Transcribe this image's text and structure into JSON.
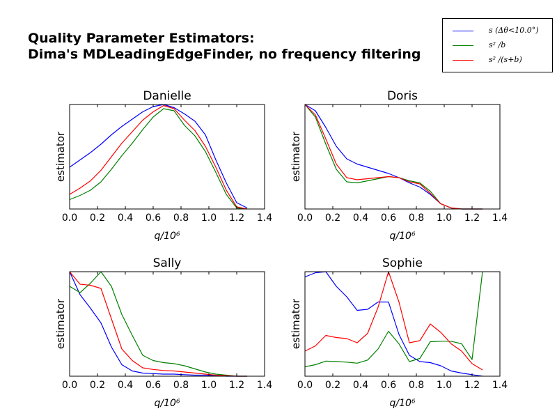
{
  "suptitle": {
    "line1": "Quality Parameter Estimators:",
    "line2": "Dima's MDLeadingEdgeFinder, no frequency filtering"
  },
  "legend": {
    "placement": "top-right",
    "entries": [
      {
        "label": "s (Δθ<10.0°)",
        "color": "#0000ff"
      },
      {
        "label": "s² /b",
        "color": "#008000"
      },
      {
        "label": "s² /(s+b)",
        "color": "#ff0000"
      }
    ]
  },
  "chart_data": [
    {
      "type": "line",
      "title": "Danielle",
      "xlabel": "q/10⁶",
      "ylabel": "estimator",
      "xlim": [
        0.0,
        1.4
      ],
      "ylim": [
        0.0,
        1.0
      ],
      "xticks": [
        "0.0",
        "0.2",
        "0.4",
        "0.6",
        "0.8",
        "1.0",
        "1.2",
        "1.4"
      ],
      "x": [
        0.0,
        0.075,
        0.15,
        0.225,
        0.3,
        0.375,
        0.45,
        0.525,
        0.6,
        0.675,
        0.75,
        0.825,
        0.9,
        0.975,
        1.05,
        1.125,
        1.2,
        1.275
      ],
      "series": [
        {
          "color": "#0000ff",
          "values": [
            0.4,
            0.47,
            0.54,
            0.62,
            0.71,
            0.79,
            0.86,
            0.93,
            0.98,
            1.0,
            0.97,
            0.91,
            0.84,
            0.71,
            0.47,
            0.25,
            0.06,
            0.01
          ]
        },
        {
          "color": "#008000",
          "values": [
            0.09,
            0.13,
            0.18,
            0.26,
            0.38,
            0.51,
            0.63,
            0.76,
            0.88,
            0.96,
            0.94,
            0.8,
            0.7,
            0.55,
            0.35,
            0.14,
            0.01,
            0.0
          ]
        },
        {
          "color": "#ff0000",
          "values": [
            0.14,
            0.2,
            0.27,
            0.37,
            0.5,
            0.63,
            0.74,
            0.85,
            0.93,
            0.99,
            0.96,
            0.85,
            0.75,
            0.6,
            0.4,
            0.18,
            0.02,
            0.0
          ]
        }
      ]
    },
    {
      "type": "line",
      "title": "Doris",
      "xlabel": "q/10⁶",
      "ylabel": "estimator",
      "xlim": [
        0.0,
        1.4
      ],
      "ylim": [
        0.0,
        1.0
      ],
      "xticks": [
        "0.0",
        "0.2",
        "0.4",
        "0.6",
        "0.8",
        "1.0",
        "1.2",
        "1.4"
      ],
      "x": [
        0.0,
        0.075,
        0.15,
        0.225,
        0.3,
        0.375,
        0.45,
        0.525,
        0.6,
        0.675,
        0.75,
        0.825,
        0.9,
        0.975,
        1.05,
        1.125,
        1.2,
        1.275
      ],
      "series": [
        {
          "color": "#0000ff",
          "values": [
            1.0,
            0.94,
            0.78,
            0.6,
            0.48,
            0.43,
            0.4,
            0.37,
            0.34,
            0.3,
            0.25,
            0.21,
            0.14,
            0.05,
            0.01,
            0.0,
            0.0,
            0.0
          ]
        },
        {
          "color": "#008000",
          "values": [
            1.0,
            0.88,
            0.62,
            0.38,
            0.26,
            0.25,
            0.27,
            0.29,
            0.31,
            0.3,
            0.27,
            0.25,
            0.17,
            0.05,
            0.01,
            0.0,
            0.0,
            0.0
          ]
        },
        {
          "color": "#ff0000",
          "values": [
            1.0,
            0.9,
            0.67,
            0.43,
            0.3,
            0.28,
            0.29,
            0.3,
            0.31,
            0.3,
            0.26,
            0.24,
            0.15,
            0.05,
            0.01,
            0.0,
            0.0,
            0.0
          ]
        }
      ]
    },
    {
      "type": "line",
      "title": "Sally",
      "xlabel": "q/10⁶",
      "ylabel": "estimator",
      "xlim": [
        0.0,
        1.4
      ],
      "ylim": [
        0.0,
        1.0
      ],
      "xticks": [
        "0.0",
        "0.2",
        "0.4",
        "0.6",
        "0.8",
        "1.0",
        "1.2",
        "1.4"
      ],
      "x": [
        0.0,
        0.075,
        0.15,
        0.225,
        0.3,
        0.375,
        0.45,
        0.525,
        0.6,
        0.675,
        0.75,
        0.825,
        0.9,
        0.975,
        1.05,
        1.125,
        1.2,
        1.275
      ],
      "series": [
        {
          "color": "#0000ff",
          "values": [
            1.0,
            0.78,
            0.65,
            0.51,
            0.28,
            0.11,
            0.05,
            0.03,
            0.025,
            0.02,
            0.02,
            0.015,
            0.01,
            0.01,
            0.005,
            0.0,
            0.0,
            0.0
          ]
        },
        {
          "color": "#008000",
          "values": [
            0.86,
            0.8,
            0.89,
            1.0,
            0.86,
            0.59,
            0.39,
            0.2,
            0.15,
            0.13,
            0.12,
            0.1,
            0.07,
            0.04,
            0.02,
            0.01,
            0.0,
            0.0
          ]
        },
        {
          "color": "#ff0000",
          "values": [
            1.0,
            0.88,
            0.87,
            0.84,
            0.55,
            0.26,
            0.15,
            0.08,
            0.065,
            0.055,
            0.05,
            0.04,
            0.03,
            0.02,
            0.01,
            0.005,
            0.0,
            0.0
          ]
        }
      ]
    },
    {
      "type": "line",
      "title": "Sophie",
      "xlabel": "q/10⁶",
      "ylabel": "estimator",
      "xlim": [
        0.0,
        1.4
      ],
      "ylim": [
        0.0,
        1.0
      ],
      "xticks": [
        "0.0",
        "0.2",
        "0.4",
        "0.6",
        "0.8",
        "1.0",
        "1.2",
        "1.4"
      ],
      "x": [
        0.0,
        0.075,
        0.15,
        0.225,
        0.3,
        0.375,
        0.45,
        0.525,
        0.6,
        0.675,
        0.75,
        0.825,
        0.9,
        0.975,
        1.05,
        1.125,
        1.2,
        1.275
      ],
      "series": [
        {
          "color": "#0000ff",
          "values": [
            0.95,
            0.99,
            1.0,
            0.86,
            0.76,
            0.63,
            0.64,
            0.71,
            0.71,
            0.4,
            0.2,
            0.14,
            0.13,
            0.1,
            0.05,
            0.03,
            0.015,
            0.0
          ]
        },
        {
          "color": "#008000",
          "values": [
            0.09,
            0.11,
            0.145,
            0.14,
            0.135,
            0.125,
            0.155,
            0.26,
            0.43,
            0.31,
            0.14,
            0.17,
            0.33,
            0.335,
            0.335,
            0.31,
            0.16,
            1.0
          ]
        },
        {
          "color": "#ff0000",
          "values": [
            0.24,
            0.29,
            0.39,
            0.37,
            0.36,
            0.32,
            0.41,
            0.66,
            1.0,
            0.71,
            0.32,
            0.34,
            0.5,
            0.42,
            0.31,
            0.24,
            0.12,
            0.06
          ]
        }
      ]
    }
  ]
}
